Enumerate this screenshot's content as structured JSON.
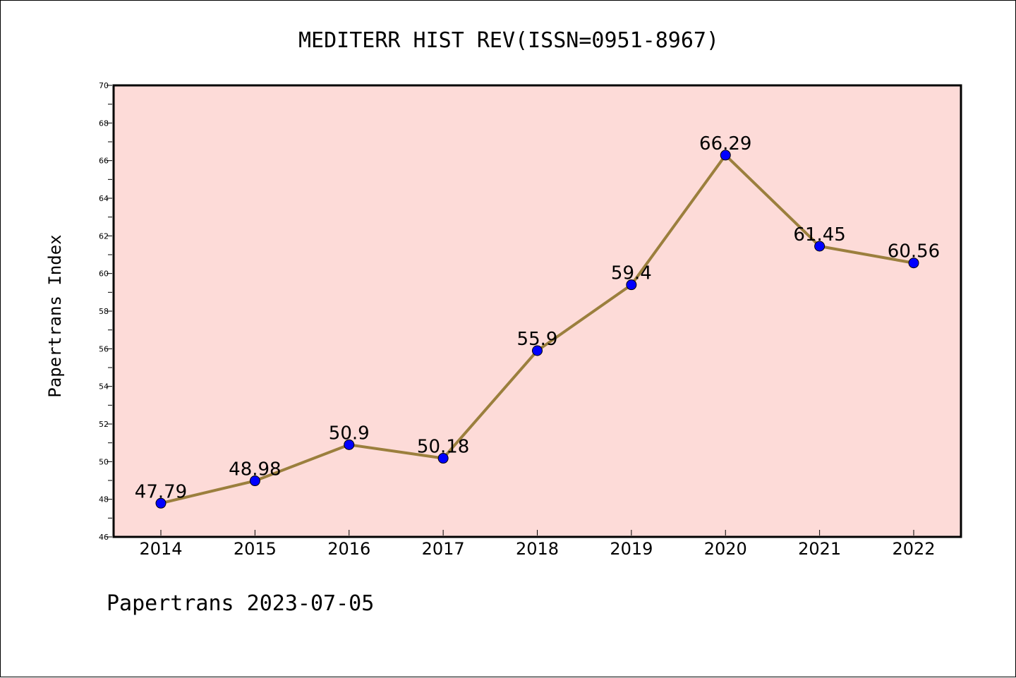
{
  "chart_data": {
    "type": "line",
    "title": "MEDITERR HIST REV(ISSN=0951-8967)",
    "xlabel": "",
    "ylabel": "Papertrans Index",
    "categories": [
      "2014",
      "2015",
      "2016",
      "2017",
      "2018",
      "2019",
      "2020",
      "2021",
      "2022"
    ],
    "values": [
      47.79,
      48.98,
      50.9,
      50.18,
      55.9,
      59.4,
      66.29,
      61.45,
      60.56
    ],
    "data_labels": [
      "47.79",
      "48.98",
      "50.9",
      "50.18",
      "55.9",
      "59.4",
      "66.29",
      "61.45",
      "60.56"
    ],
    "ylim": [
      46,
      70
    ],
    "yticks": [
      46,
      48,
      50,
      52,
      54,
      56,
      58,
      60,
      62,
      64,
      66,
      68,
      70
    ],
    "grid": false,
    "legend": "none",
    "footer": "Papertrans 2023-07-05",
    "colors": {
      "plot_background": "#fddbd8",
      "line": "#9b7f3d",
      "marker": "#0000ff",
      "marker_edge": "#000000"
    }
  }
}
